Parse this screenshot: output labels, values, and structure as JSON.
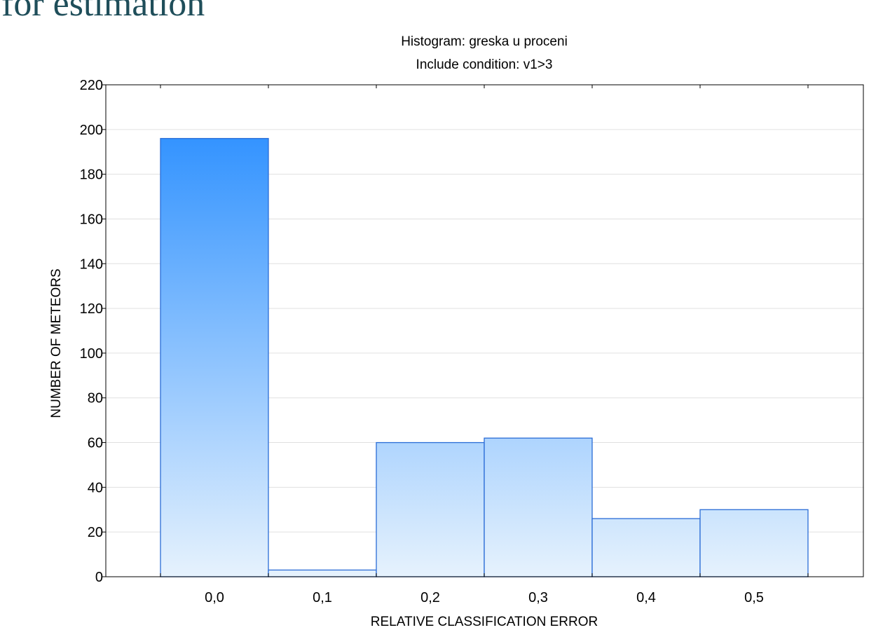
{
  "page": {
    "heading": "for estimation"
  },
  "chart_data": {
    "type": "bar",
    "title": "Histogram: greska u proceni",
    "subtitle": "Include condition: v1>3",
    "xlabel": "RELATIVE CLASSIFICATION ERROR",
    "ylabel": "NUMBER OF METEORS",
    "categories": [
      "0,0",
      "0,1",
      "0,2",
      "0,3",
      "0,4",
      "0,5"
    ],
    "values": [
      196,
      3,
      60,
      62,
      26,
      30
    ],
    "ylim": [
      0,
      220
    ],
    "yticks": [
      0,
      20,
      40,
      60,
      80,
      100,
      120,
      140,
      160,
      180,
      200,
      220
    ],
    "grid": true,
    "colors": {
      "bar_top": "#1e88ff",
      "bar_bottom": "#e6f2fd",
      "bar_stroke": "#2a6cd6",
      "grid": "#e0e0e0",
      "axis": "#000000"
    }
  }
}
